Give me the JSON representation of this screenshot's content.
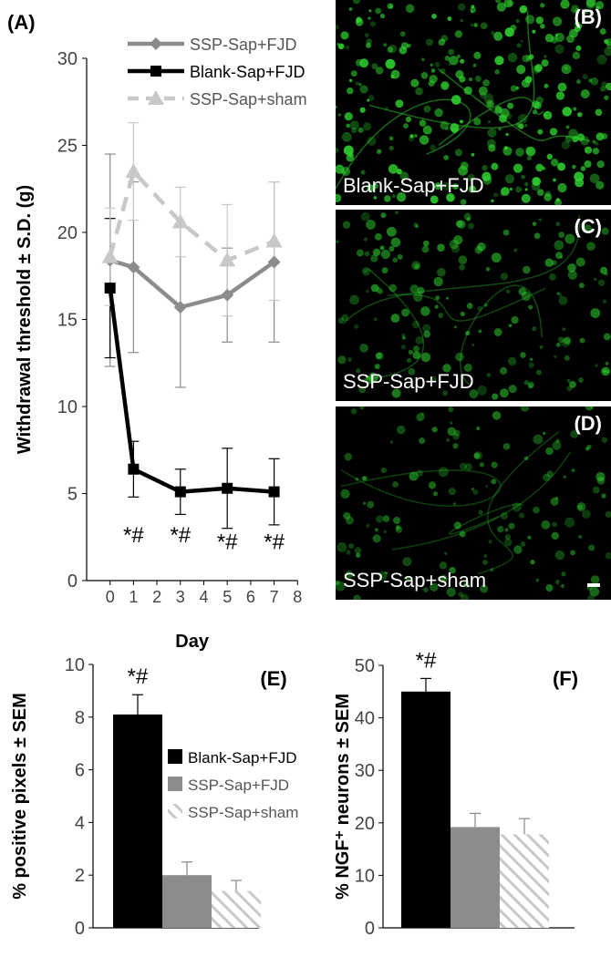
{
  "colors": {
    "ssp_fjd": "#8c8c8c",
    "blank_fjd": "#000000",
    "ssp_sham": "#c8c8c8",
    "fluorescence": "#2fd22f"
  },
  "chart_data": [
    {
      "id": "A",
      "type": "line",
      "panel_label": "(A)",
      "xlabel": "Day",
      "ylabel": "Withdrawal threshold ± S.D. (g)",
      "xlim": [
        -1,
        8
      ],
      "ylim": [
        0,
        30
      ],
      "x_ticks": [
        0,
        1,
        2,
        3,
        4,
        5,
        6,
        7,
        8
      ],
      "y_ticks": [
        0,
        5,
        10,
        15,
        20,
        25,
        30
      ],
      "grid": false,
      "legend_position": "top-right",
      "series": [
        {
          "name": "SSP-Sap+FJD",
          "marker": "diamond",
          "dash": "solid",
          "x": [
            0,
            1,
            3,
            5,
            7
          ],
          "y": [
            18.4,
            18.0,
            15.7,
            16.4,
            18.3
          ],
          "err": [
            6.1,
            4.9,
            4.6,
            2.7,
            4.6
          ]
        },
        {
          "name": "Blank-Sap+FJD",
          "marker": "square",
          "dash": "solid",
          "x": [
            0,
            1,
            3,
            5,
            7
          ],
          "y": [
            16.8,
            6.4,
            5.1,
            5.3,
            5.1
          ],
          "err": [
            4.0,
            1.6,
            1.3,
            2.3,
            1.9
          ]
        },
        {
          "name": "SSP-Sap+sham",
          "marker": "triangle",
          "dash": "dashed",
          "x": [
            0,
            1,
            3,
            5,
            7
          ],
          "y": [
            18.6,
            23.5,
            20.6,
            18.4,
            19.5
          ],
          "err": [
            2.8,
            2.8,
            2.0,
            3.2,
            3.4
          ]
        }
      ],
      "annotations": [
        {
          "x": 1,
          "y": 2.2,
          "text": "*#"
        },
        {
          "x": 3,
          "y": 2.2,
          "text": "*#"
        },
        {
          "x": 5,
          "y": 1.8,
          "text": "*#"
        },
        {
          "x": 7,
          "y": 1.8,
          "text": "*#"
        }
      ]
    },
    {
      "id": "E",
      "type": "bar",
      "panel_label": "(E)",
      "ylabel": "% positive pixels ± SEM",
      "ylim": [
        0,
        10
      ],
      "y_ticks": [
        0,
        2,
        4,
        6,
        8,
        10
      ],
      "grid": false,
      "legend_position": "right",
      "series": [
        {
          "name": "Blank-Sap+FJD",
          "value": 8.1,
          "err": 0.75
        },
        {
          "name": "SSP-Sap+FJD",
          "value": 2.0,
          "err": 0.5
        },
        {
          "name": "SSP-Sap+sham",
          "value": 1.4,
          "err": 0.4
        }
      ],
      "annotations": [
        {
          "bar": 0,
          "text": "*#"
        }
      ]
    },
    {
      "id": "F",
      "type": "bar",
      "panel_label": "(F)",
      "ylabel": "% NGF⁺ neurons ± SEM",
      "ylim": [
        0,
        50
      ],
      "y_ticks": [
        0,
        10,
        20,
        30,
        40,
        50
      ],
      "grid": false,
      "series": [
        {
          "name": "Blank-Sap+FJD",
          "value": 45.0,
          "err": 2.5
        },
        {
          "name": "SSP-Sap+FJD",
          "value": 19.2,
          "err": 2.6
        },
        {
          "name": "SSP-Sap+sham",
          "value": 17.8,
          "err": 3.0
        }
      ],
      "annotations": [
        {
          "bar": 0,
          "text": "*#"
        }
      ]
    }
  ],
  "image_panels": [
    {
      "id": "B",
      "letter": "(B)",
      "caption": "Blank-Sap+FJD",
      "density": 1.0
    },
    {
      "id": "C",
      "letter": "(C)",
      "caption": "SSP-Sap+FJD",
      "density": 0.55
    },
    {
      "id": "D",
      "letter": "(D)",
      "caption": "SSP-Sap+sham",
      "density": 0.45
    }
  ]
}
